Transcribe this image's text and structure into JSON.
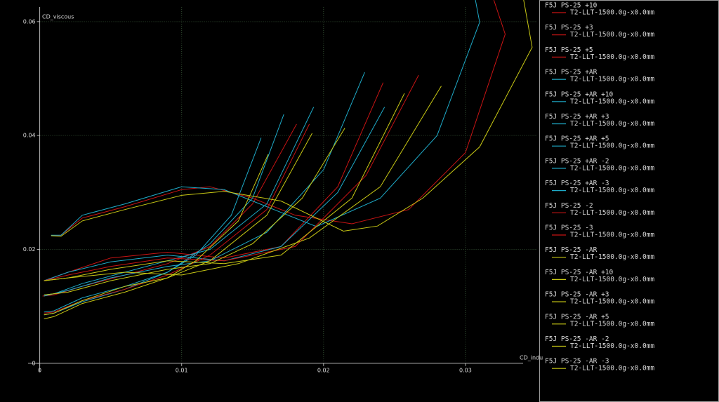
{
  "chart_data": {
    "type": "line",
    "y_label": "CD_viscous",
    "x_label": "CD_indu",
    "xlim": [
      -0.0028,
      0.0352
    ],
    "ylim": [
      -0.0068,
      0.0638
    ],
    "xticks": [
      0,
      0.01,
      0.02,
      0.03
    ],
    "yticks": [
      0,
      0.02,
      0.04,
      0.06
    ],
    "grid": true,
    "series": [
      {
        "name": "F5J PS-25 +10",
        "polar": "T2-LLT-1500.0g-x0.0mm",
        "color": "#c81414",
        "x": [
          0.0008,
          0.0015,
          0.003,
          0.006,
          0.01,
          0.012,
          0.015,
          0.018,
          0.022,
          0.026,
          0.03,
          0.0328,
          0.032
        ],
        "values": [
          0.0224,
          0.0225,
          0.0255,
          0.0275,
          0.0305,
          0.031,
          0.029,
          0.026,
          0.0245,
          0.027,
          0.037,
          0.0578,
          0.0638
        ]
      },
      {
        "name": "F5J PS-25 +3",
        "polar": "T2-LLT-1500.0g-x0.0mm",
        "color": "#c81414",
        "x": [
          0.0002,
          0.001,
          0.003,
          0.006,
          0.009,
          0.012,
          0.015,
          0.0181
        ],
        "values": [
          0.0118,
          0.012,
          0.0135,
          0.0155,
          0.0175,
          0.0205,
          0.028,
          0.042
        ]
      },
      {
        "name": "F5J PS-25 +5",
        "polar": "T2-LLT-1500.0g-x0.0mm",
        "color": "#c81414",
        "x": [
          0.0003,
          0.002,
          0.005,
          0.009,
          0.013,
          0.017,
          0.021,
          0.0242
        ],
        "values": [
          0.0145,
          0.016,
          0.0185,
          0.0195,
          0.0185,
          0.0205,
          0.031,
          0.0493
        ]
      },
      {
        "name": "F5J PS-25 +AR",
        "polar": "T2-LLT-1500.0g-x0.0mm",
        "color": "#1eaac8",
        "x": [
          0.0003,
          0.002,
          0.005,
          0.009,
          0.012,
          0.016,
          0.02,
          0.0229
        ],
        "values": [
          0.0118,
          0.0128,
          0.015,
          0.017,
          0.018,
          0.023,
          0.034,
          0.0511
        ]
      },
      {
        "name": "F5J PS-25 +AR +10",
        "polar": "T2-LLT-1500.0g-x0.0mm",
        "color": "#1eaac8",
        "x": [
          0.0008,
          0.0015,
          0.003,
          0.006,
          0.01,
          0.013,
          0.0165,
          0.0195,
          0.024,
          0.028,
          0.031,
          0.0307
        ],
        "values": [
          0.0225,
          0.0225,
          0.026,
          0.028,
          0.031,
          0.0305,
          0.027,
          0.024,
          0.029,
          0.04,
          0.0599,
          0.0638
        ]
      },
      {
        "name": "F5J PS-25 +AR +3",
        "polar": "T2-LLT-1500.0g-x0.0mm",
        "color": "#1eaac8",
        "x": [
          0.0003,
          0.001,
          0.003,
          0.006,
          0.009,
          0.012,
          0.015,
          0.0172
        ],
        "values": [
          0.009,
          0.0092,
          0.0115,
          0.0135,
          0.016,
          0.021,
          0.029,
          0.0437
        ]
      },
      {
        "name": "F5J PS-25 +AR +5",
        "polar": "T2-LLT-1500.0g-x0.0mm",
        "color": "#1eaac8",
        "x": [
          0.0003,
          0.002,
          0.005,
          0.009,
          0.013,
          0.017,
          0.021,
          0.0243
        ],
        "values": [
          0.0145,
          0.016,
          0.0178,
          0.019,
          0.018,
          0.0205,
          0.03,
          0.045
        ]
      },
      {
        "name": "F5J PS-25 +AR -2",
        "polar": "T2-LLT-1500.0g-x0.0mm",
        "color": "#1eaac8",
        "x": [
          0.0003,
          0.001,
          0.003,
          0.006,
          0.009,
          0.012,
          0.016,
          0.0193
        ],
        "values": [
          0.012,
          0.0122,
          0.014,
          0.016,
          0.018,
          0.02,
          0.028,
          0.045
        ]
      },
      {
        "name": "F5J PS-25 +AR -3",
        "polar": "T2-LLT-1500.0g-x0.0mm",
        "color": "#1eaac8",
        "x": [
          0.0003,
          0.001,
          0.003,
          0.006,
          0.009,
          0.011,
          0.0135,
          0.0156
        ],
        "values": [
          0.0085,
          0.0088,
          0.0108,
          0.013,
          0.016,
          0.019,
          0.026,
          0.0396
        ]
      },
      {
        "name": "F5J PS-25 -2",
        "polar": "T2-LLT-1500.0g-x0.0mm",
        "color": "#c81414",
        "x": [
          0.0003,
          0.002,
          0.005,
          0.009,
          0.013,
          0.018,
          0.023,
          0.0267
        ],
        "values": [
          0.0145,
          0.0155,
          0.017,
          0.0185,
          0.018,
          0.0205,
          0.033,
          0.0506
        ]
      },
      {
        "name": "F5J PS-25 -3",
        "polar": "T2-LLT-1500.0g-x0.0mm",
        "color": "#c81414",
        "x": [
          0.0003,
          0.001,
          0.003,
          0.006,
          0.009,
          0.012,
          0.016,
          0.019
        ],
        "values": [
          0.0088,
          0.009,
          0.011,
          0.013,
          0.0155,
          0.019,
          0.027,
          0.042
        ]
      },
      {
        "name": "F5J PS-25 -AR",
        "polar": "T2-LLT-1500.0g-x0.0mm",
        "color": "#c8c814",
        "x": [
          0.0003,
          0.002,
          0.005,
          0.009,
          0.012,
          0.015,
          0.0185,
          0.0215
        ],
        "values": [
          0.012,
          0.0125,
          0.0145,
          0.0165,
          0.0175,
          0.021,
          0.029,
          0.0413
        ]
      },
      {
        "name": "F5J PS-25 -AR +10",
        "polar": "T2-LLT-1500.0g-x0.0mm",
        "color": "#c8c814",
        "x": [
          0.0008,
          0.0015,
          0.003,
          0.006,
          0.01,
          0.013,
          0.017,
          0.0214,
          0.0238,
          0.027,
          0.031,
          0.0347,
          0.0341
        ],
        "values": [
          0.0224,
          0.0223,
          0.025,
          0.027,
          0.0295,
          0.0302,
          0.0285,
          0.0232,
          0.0241,
          0.029,
          0.038,
          0.0555,
          0.0638
        ]
      },
      {
        "name": "F5J PS-25 -AR +3",
        "polar": "T2-LLT-1500.0g-x0.0mm",
        "color": "#c8c814",
        "x": [
          0.0003,
          0.001,
          0.003,
          0.006,
          0.009,
          0.011,
          0.014,
          0.0161
        ],
        "values": [
          0.0078,
          0.0082,
          0.0105,
          0.0125,
          0.015,
          0.018,
          0.025,
          0.0367
        ]
      },
      {
        "name": "F5J PS-25 -AR +5",
        "polar": "T2-LLT-1500.0g-x0.0mm",
        "color": "#c8c814",
        "x": [
          0.0003,
          0.002,
          0.005,
          0.009,
          0.013,
          0.017,
          0.022,
          0.0257
        ],
        "values": [
          0.0145,
          0.015,
          0.0165,
          0.018,
          0.0175,
          0.019,
          0.029,
          0.0474
        ]
      },
      {
        "name": "F5J PS-25 -AR -2",
        "polar": "T2-LLT-1500.0g-x0.0mm",
        "color": "#c8c814",
        "x": [
          0.0003,
          0.002,
          0.006,
          0.01,
          0.014,
          0.019,
          0.024,
          0.0283
        ],
        "values": [
          0.0145,
          0.015,
          0.016,
          0.0155,
          0.0175,
          0.022,
          0.031,
          0.0487
        ]
      },
      {
        "name": "F5J PS-25 -AR -3",
        "polar": "T2-LLT-1500.0g-x0.0mm",
        "color": "#c8c814",
        "x": [
          0.0003,
          0.001,
          0.003,
          0.006,
          0.009,
          0.012,
          0.016,
          0.0192
        ],
        "values": [
          0.0085,
          0.0088,
          0.011,
          0.0135,
          0.015,
          0.018,
          0.026,
          0.0404
        ]
      }
    ]
  }
}
